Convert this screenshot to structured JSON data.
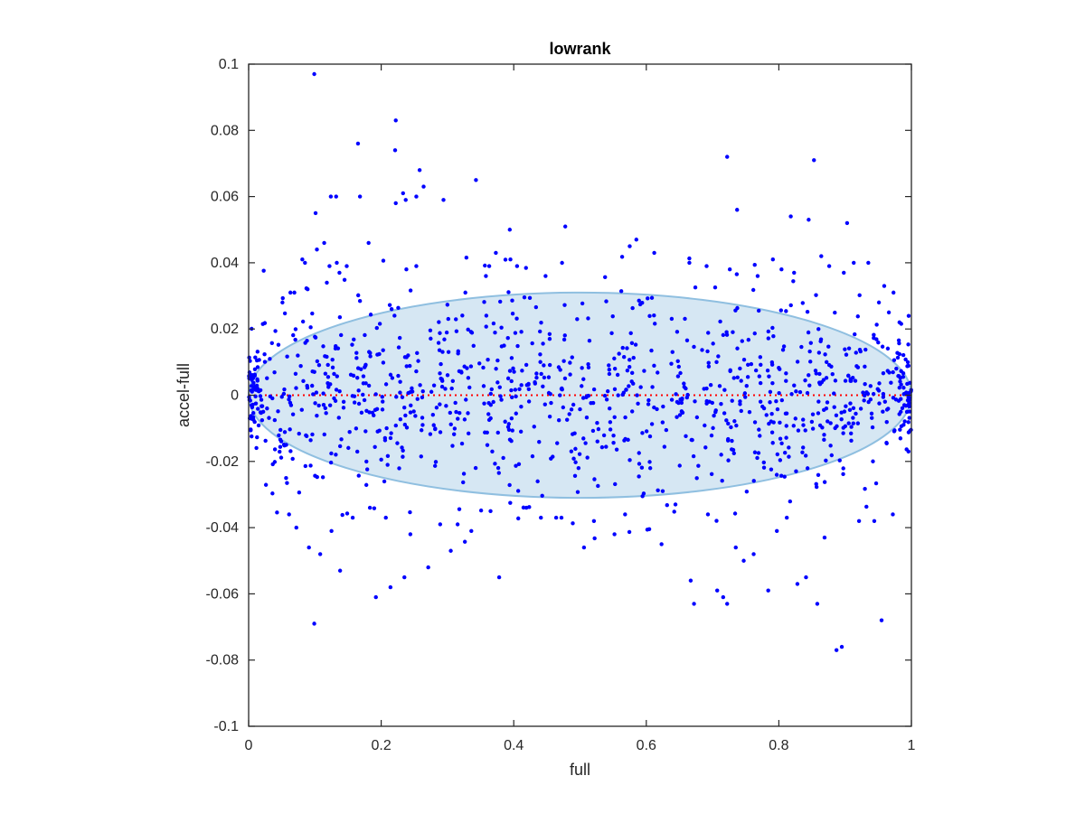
{
  "chart_data": {
    "type": "scatter",
    "title": "lowrank",
    "xlabel": "full",
    "ylabel": "accel-full",
    "xlim": [
      0,
      1
    ],
    "ylim": [
      -0.1,
      0.1
    ],
    "x_ticks": [
      0,
      0.2,
      0.4,
      0.6,
      0.8,
      1
    ],
    "x_tick_labels": [
      "0",
      "0.2",
      "0.4",
      "0.6",
      "0.8",
      "1"
    ],
    "y_ticks": [
      -0.1,
      -0.08,
      -0.06,
      -0.04,
      -0.02,
      0,
      0.02,
      0.04,
      0.06,
      0.08,
      0.1
    ],
    "y_tick_labels": [
      "-0.1",
      "-0.08",
      "-0.06",
      "-0.04",
      "-0.02",
      "0",
      "0.02",
      "0.04",
      "0.06",
      "0.08",
      "0.1"
    ],
    "grid": false,
    "box": true,
    "colors": {
      "points": "#0000ff",
      "ellipse_fill": "#d6e7f3",
      "ellipse_edge": "#8fbfe0",
      "zero_line": "#ff0000",
      "axes": "#262626"
    },
    "series": [
      {
        "marker": "dot",
        "note_count": 1200,
        "x": [
          0.099,
          0.222,
          0.165,
          0.722,
          0.853,
          0.221,
          0.233,
          0.258,
          0.237,
          0.264,
          0.343,
          0.124,
          0.132,
          0.168,
          0.294,
          0.253,
          0.101,
          0.737,
          0.222,
          0.903,
          0.394,
          0.818,
          0.845,
          0.181,
          0.114,
          0.133,
          0.148,
          0.081,
          0.085,
          0.103,
          0.089,
          0.118,
          0.069,
          0.051,
          0.063,
          0.137,
          0.122,
          0.238,
          0.253,
          0.327,
          0.358,
          0.363,
          0.373,
          0.395,
          0.405,
          0.448,
          0.575,
          0.585,
          0.612,
          0.665,
          0.691,
          0.726,
          0.768,
          0.791,
          0.804,
          0.823,
          0.864,
          0.876,
          0.898,
          0.913,
          0.935,
          0.951,
          0.959,
          0.966,
          0.973,
          0.982,
          0.099,
          0.138,
          0.192,
          0.214,
          0.235,
          0.271,
          0.305,
          0.378,
          0.441,
          0.472,
          0.506,
          0.552,
          0.623,
          0.667,
          0.672,
          0.707,
          0.716,
          0.722,
          0.747,
          0.784,
          0.828,
          0.841,
          0.858,
          0.887,
          0.895,
          0.955,
          0.061,
          0.072,
          0.091,
          0.108,
          0.125,
          0.157,
          0.183,
          0.207,
          0.244,
          0.289,
          0.336,
          0.365,
          0.419,
          0.464,
          0.521,
          0.568,
          0.644,
          0.693,
          0.735,
          0.762,
          0.797,
          0.812,
          0.869,
          0.921,
          0.944,
          0.972
        ],
        "y": [
          0.097,
          0.083,
          0.076,
          0.072,
          0.071,
          0.074,
          0.061,
          0.068,
          0.059,
          0.063,
          0.065,
          0.06,
          0.06,
          0.06,
          0.059,
          0.06,
          0.055,
          0.056,
          0.058,
          0.052,
          0.05,
          0.054,
          0.053,
          0.046,
          0.046,
          0.04,
          0.039,
          0.041,
          0.04,
          0.044,
          0.032,
          0.034,
          0.031,
          0.028,
          0.031,
          0.037,
          0.039,
          0.038,
          0.039,
          0.031,
          0.036,
          0.039,
          0.043,
          0.041,
          0.039,
          0.036,
          0.045,
          0.047,
          0.043,
          0.04,
          0.039,
          0.038,
          0.036,
          0.041,
          0.038,
          0.037,
          0.042,
          0.039,
          0.037,
          0.04,
          0.04,
          0.028,
          0.033,
          0.025,
          0.031,
          0.022,
          -0.069,
          -0.053,
          -0.061,
          -0.058,
          -0.055,
          -0.052,
          -0.047,
          -0.055,
          -0.037,
          -0.037,
          -0.046,
          -0.042,
          -0.045,
          -0.056,
          -0.063,
          -0.059,
          -0.061,
          -0.063,
          -0.05,
          -0.059,
          -0.057,
          -0.055,
          -0.063,
          -0.077,
          -0.076,
          -0.068,
          -0.036,
          -0.04,
          -0.046,
          -0.048,
          -0.041,
          -0.037,
          -0.034,
          -0.037,
          -0.042,
          -0.039,
          -0.041,
          -0.035,
          -0.034,
          -0.037,
          -0.038,
          -0.036,
          -0.033,
          -0.036,
          -0.046,
          -0.048,
          -0.041,
          -0.037,
          -0.043,
          -0.038,
          -0.038,
          -0.036
        ],
        "dense_band": {
          "x_range": [
            0,
            1
          ],
          "y_range": [
            -0.031,
            0.031
          ],
          "description_shape": "ellipse"
        }
      }
    ],
    "ellipse": {
      "center": [
        0.5,
        0
      ],
      "x_radius": 0.5,
      "y_radius": 0.031
    },
    "zero_line": {
      "y": 0,
      "style": "dotted"
    }
  }
}
